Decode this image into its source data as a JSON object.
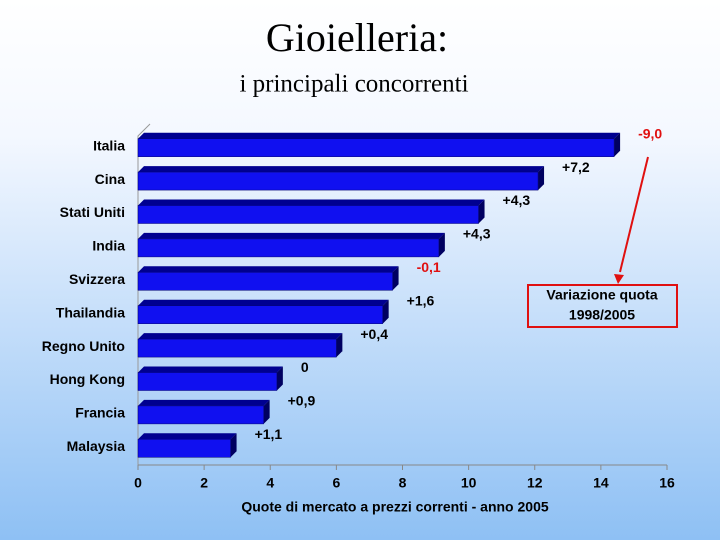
{
  "chart_data": {
    "type": "hbar3d",
    "title": "Gioielleria:",
    "subtitle": "i principali concorrenti",
    "xlabel": "Quote di mercato a prezzi correnti - anno 2005",
    "categories": [
      "Italia",
      "Cina",
      "Stati Uniti",
      "India",
      "Svizzera",
      "Thailandia",
      "Regno Unito",
      "Hong Kong",
      "Francia",
      "Malaysia"
    ],
    "values": [
      14.4,
      12.1,
      10.3,
      9.1,
      7.7,
      7.4,
      6.0,
      4.2,
      3.8,
      2.8
    ],
    "change_labels": [
      "-9,0",
      "+7,2",
      "+4,3",
      "+4,3",
      "-0,1",
      "+1,6",
      "+0,4",
      "0",
      "+0,9",
      "+1,1"
    ],
    "annotation_box": [
      "Variazione quota",
      "1998/2005"
    ],
    "color": "#1010f0",
    "negative_color": "#e01010",
    "xlim": [
      0,
      16
    ],
    "xticks": [
      0,
      2,
      4,
      6,
      8,
      10,
      12,
      14,
      16
    ]
  }
}
